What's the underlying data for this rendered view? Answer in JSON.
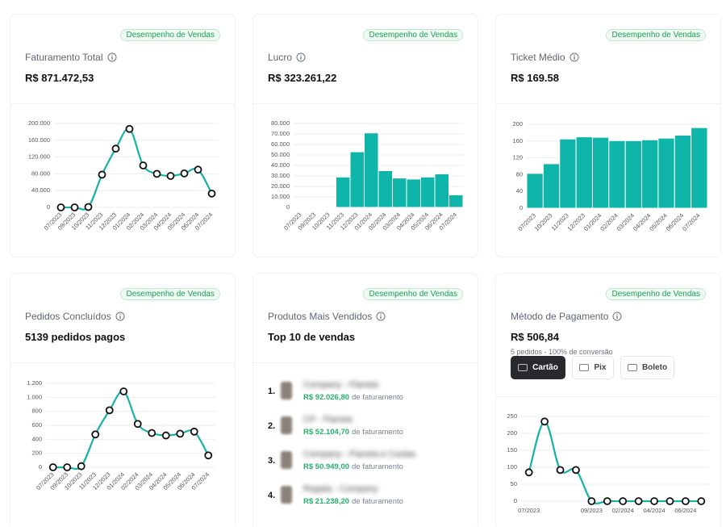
{
  "cards": [
    {
      "badge": "Desempenho de Vendas",
      "title": "Faturamento Total",
      "headline": "R$ 871.472,53"
    },
    {
      "badge": "Desempenho de Vendas",
      "title": "Lucro",
      "headline": "R$ 323.261,22"
    },
    {
      "badge": "Desempenho de Vendas",
      "title": "Ticket Médio",
      "headline": "R$ 169.58"
    },
    {
      "badge": "Desempenho de Vendas",
      "title": "Pedidos Concluídos",
      "headline": "5139 pedidos pagos"
    },
    {
      "badge": "Desempenho de Vendas",
      "title": "Produtos Mais Vendidos",
      "headline": "Top 10 de vendas",
      "items": [
        {
          "rank": "1.",
          "name": "Company - Flanela",
          "amount": "R$ 92.026,80",
          "suffix": "de faturamento"
        },
        {
          "rank": "2.",
          "name": "CP - Flanela",
          "amount": "R$ 52.104,70",
          "suffix": "de faturamento"
        },
        {
          "rank": "3.",
          "name": "Company - Flanela e Coolas",
          "amount": "R$ 50.949,00",
          "suffix": "de faturamento"
        },
        {
          "rank": "4.",
          "name": "Regata - Company",
          "amount": "R$ 21.238,20",
          "suffix": "de faturamento"
        }
      ]
    },
    {
      "badge": "Desempenho de Vendas",
      "title": "Método de Pagamento",
      "headline": "R$ 506,84",
      "subtitle": "5 pedidos - 100% de conversão",
      "tabs": [
        "Cartão",
        "Pix",
        "Boleto"
      ]
    }
  ],
  "chart_data": [
    {
      "type": "line",
      "categories": [
        "07/2023",
        "09/2023",
        "10/2023",
        "11/2023",
        "12/2023",
        "01/2024",
        "02/2024",
        "03/2024",
        "04/2024",
        "05/2024",
        "06/2024",
        "07/2024"
      ],
      "values": [
        0,
        0,
        1000,
        78000,
        140000,
        187000,
        100000,
        80000,
        75000,
        81000,
        90000,
        33000
      ],
      "color": "#17b2a5",
      "markers": true,
      "ylim": [
        0,
        200000
      ],
      "yticks": [
        0,
        {
          "value": 40000,
          "label": "40.000"
        },
        {
          "value": 80000,
          "label": "80.000"
        },
        {
          "value": 120000,
          "label": "120.000"
        },
        {
          "value": 160000,
          "label": "160.000"
        },
        {
          "value": 200000,
          "label": "200.000"
        }
      ],
      "grid": true
    },
    {
      "type": "bar",
      "categories": [
        "07/2023",
        "09/2023",
        "10/2023",
        "11/2023",
        "12/2023",
        "01/2024",
        "02/2024",
        "03/2024",
        "04/2024",
        "05/2024",
        "06/2024",
        "07/2024"
      ],
      "values": [
        500,
        300,
        800,
        29000,
        53000,
        71000,
        35000,
        28000,
        27000,
        29000,
        32000,
        12000
      ],
      "color": "#0fb5a8",
      "ylim": [
        0,
        80000
      ],
      "yticks": [
        0,
        {
          "value": 10000,
          "label": "10.000"
        },
        {
          "value": 20000,
          "label": "20.000"
        },
        {
          "value": 30000,
          "label": "30.000"
        },
        {
          "value": 40000,
          "label": "40.000"
        },
        {
          "value": 50000,
          "label": "50.000"
        },
        {
          "value": 60000,
          "label": "60.000"
        },
        {
          "value": 70000,
          "label": "70.000"
        },
        {
          "value": 80000,
          "label": "80.000"
        }
      ],
      "grid": true
    },
    {
      "type": "bar",
      "categories": [
        "07/2023",
        "10/2023",
        "11/2023",
        "12/2023",
        "01/2024",
        "02/2024",
        "03/2024",
        "04/2024",
        "05/2024",
        "06/2024",
        "07/2024"
      ],
      "values": [
        83,
        106,
        165,
        170,
        169,
        161,
        161,
        163,
        167,
        174,
        192
      ],
      "color": "#0fb5a8",
      "ylim": [
        0,
        200
      ],
      "yticks": [
        0,
        40,
        80,
        120,
        160,
        200
      ],
      "grid": true
    },
    {
      "type": "line",
      "categories": [
        "07/2023",
        "09/2023",
        "10/2023",
        "11/2023",
        "12/2023",
        "01/2024",
        "02/2024",
        "03/2024",
        "04/2024",
        "05/2024",
        "06/2024",
        "07/2024"
      ],
      "values": [
        0,
        0,
        15,
        470,
        815,
        1085,
        620,
        490,
        455,
        480,
        510,
        170
      ],
      "color": "#17b2a5",
      "markers": true,
      "ylim": [
        0,
        1200
      ],
      "yticks": [
        0,
        200,
        400,
        600,
        800,
        {
          "value": 1000,
          "label": "1.000"
        },
        {
          "value": 1200,
          "label": "1.200"
        }
      ],
      "grid": true
    },
    {
      "type": "line",
      "categories": [
        "07/2023",
        null,
        null,
        null,
        "09/2023",
        null,
        "02/2024",
        null,
        "04/2024",
        null,
        "06/2024",
        null
      ],
      "values": [
        85,
        235,
        92,
        92,
        0,
        0,
        0,
        0,
        0,
        0,
        0,
        0
      ],
      "color": "#17b2a5",
      "markers": true,
      "ylim": [
        0,
        250
      ],
      "yticks": [
        0,
        50,
        100,
        150,
        200,
        250
      ],
      "grid": true
    }
  ]
}
